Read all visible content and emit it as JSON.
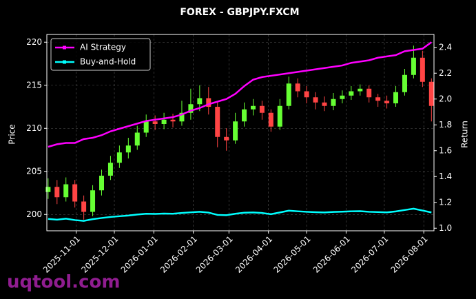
{
  "chart_data": {
    "type": "candlestick",
    "title": "FOREX - GBPJPY.FXCM",
    "ylabel": "Price",
    "y2label": "Return",
    "watermark": "uqtool.com",
    "x": [
      "2025-10-10",
      "2025-10-17",
      "2025-10-24",
      "2025-10-31",
      "2025-11-07",
      "2025-11-14",
      "2025-11-21",
      "2025-11-28",
      "2025-12-05",
      "2025-12-12",
      "2025-12-19",
      "2025-12-26",
      "2026-01-02",
      "2026-01-09",
      "2026-01-16",
      "2026-01-23",
      "2026-01-30",
      "2026-02-06",
      "2026-02-13",
      "2026-02-20",
      "2026-02-27",
      "2026-03-06",
      "2026-03-13",
      "2026-03-20",
      "2026-03-27",
      "2026-04-03",
      "2026-04-10",
      "2026-04-17",
      "2026-04-24",
      "2026-05-01",
      "2026-05-08",
      "2026-05-15",
      "2026-05-22",
      "2026-05-29",
      "2026-06-05",
      "2026-06-12",
      "2026-06-19",
      "2026-06-26",
      "2026-07-03",
      "2026-07-10",
      "2026-07-17",
      "2026-07-24",
      "2026-07-31",
      "2026-08-07"
    ],
    "open": [
      202.6,
      203.2,
      202.0,
      203.5,
      201.5,
      200.3,
      202.8,
      204.5,
      206.0,
      207.2,
      208.0,
      209.5,
      210.8,
      210.5,
      211.0,
      210.8,
      211.8,
      212.8,
      213.5,
      212.5,
      209.0,
      208.6,
      210.8,
      212.2,
      212.6,
      211.8,
      210.2,
      212.6,
      215.2,
      214.3,
      213.6,
      213.0,
      212.6,
      213.4,
      213.8,
      214.3,
      214.6,
      213.6,
      213.2,
      212.9,
      214.2,
      216.2,
      218.2,
      215.4
    ],
    "high": [
      204.2,
      204.0,
      204.3,
      204.0,
      202.2,
      203.4,
      205.2,
      206.8,
      208.0,
      208.9,
      210.3,
      211.6,
      211.5,
      211.8,
      211.7,
      213.2,
      214.6,
      215.0,
      214.8,
      213.0,
      210.0,
      211.8,
      213.0,
      213.4,
      213.2,
      212.2,
      213.4,
      216.0,
      215.8,
      214.9,
      214.2,
      213.7,
      214.1,
      214.4,
      214.9,
      215.1,
      215.0,
      214.0,
      213.8,
      214.9,
      216.9,
      219.6,
      219.0,
      215.8
    ],
    "low": [
      201.8,
      201.2,
      201.5,
      200.8,
      199.4,
      199.8,
      202.2,
      204.0,
      205.4,
      206.5,
      207.5,
      209.0,
      209.8,
      209.9,
      210.1,
      210.3,
      211.0,
      212.0,
      211.6,
      207.8,
      207.4,
      208.2,
      210.2,
      211.5,
      211.0,
      209.6,
      209.8,
      212.2,
      213.6,
      212.9,
      212.2,
      212.0,
      212.1,
      212.9,
      213.3,
      213.8,
      213.0,
      212.5,
      212.3,
      212.5,
      213.8,
      215.8,
      214.8,
      210.8
    ],
    "close": [
      203.2,
      202.0,
      203.5,
      201.5,
      200.3,
      202.8,
      204.5,
      206.0,
      207.2,
      208.0,
      209.5,
      210.8,
      210.5,
      211.0,
      210.8,
      211.8,
      212.8,
      213.5,
      212.5,
      209.0,
      208.6,
      210.8,
      212.2,
      212.6,
      211.8,
      210.2,
      212.6,
      215.2,
      214.3,
      213.6,
      213.0,
      212.6,
      213.4,
      213.8,
      214.3,
      214.6,
      213.6,
      213.2,
      212.9,
      214.2,
      216.2,
      218.2,
      215.4,
      212.6
    ],
    "up_color": "#66ff33",
    "down_color": "#ff4444",
    "series": [
      {
        "name": "AI Strategy",
        "color": "#ff00ff",
        "axis": "y2",
        "values": [
          1.63,
          1.65,
          1.66,
          1.66,
          1.69,
          1.7,
          1.72,
          1.75,
          1.77,
          1.79,
          1.81,
          1.83,
          1.84,
          1.85,
          1.86,
          1.88,
          1.91,
          1.93,
          1.96,
          1.98,
          2.0,
          2.04,
          2.1,
          2.15,
          2.17,
          2.18,
          2.19,
          2.2,
          2.21,
          2.22,
          2.23,
          2.24,
          2.25,
          2.26,
          2.28,
          2.29,
          2.3,
          2.32,
          2.33,
          2.34,
          2.37,
          2.38,
          2.39,
          2.44
        ]
      },
      {
        "name": "Buy-and-Hold",
        "color": "#00ffff",
        "axis": "y2",
        "values": [
          1.072,
          1.066,
          1.074,
          1.063,
          1.057,
          1.07,
          1.079,
          1.087,
          1.093,
          1.098,
          1.106,
          1.112,
          1.111,
          1.113,
          1.112,
          1.118,
          1.123,
          1.127,
          1.121,
          1.103,
          1.101,
          1.112,
          1.12,
          1.122,
          1.118,
          1.109,
          1.122,
          1.136,
          1.131,
          1.127,
          1.124,
          1.122,
          1.126,
          1.128,
          1.131,
          1.132,
          1.127,
          1.125,
          1.123,
          1.13,
          1.141,
          1.151,
          1.137,
          1.122
        ]
      }
    ],
    "xlim": [
      "2025-10-09",
      "2026-08-09"
    ],
    "xticks": [
      "2025-11-01",
      "2025-12-01",
      "2026-01-01",
      "2026-02-01",
      "2026-03-01",
      "2026-04-01",
      "2026-05-01",
      "2026-06-01",
      "2026-07-01",
      "2026-08-01"
    ],
    "ylim": [
      198.1,
      220.9
    ],
    "yticks": [
      200,
      205,
      210,
      215,
      220
    ],
    "y2lim": [
      0.98,
      2.5
    ],
    "y2ticks": [
      {
        "value": 1,
        "label": "1.0"
      },
      1.2,
      1.4,
      1.6,
      1.8,
      {
        "value": 2,
        "label": "2.0"
      },
      2.2,
      2.4
    ],
    "grid": true,
    "legend": "upper left"
  }
}
